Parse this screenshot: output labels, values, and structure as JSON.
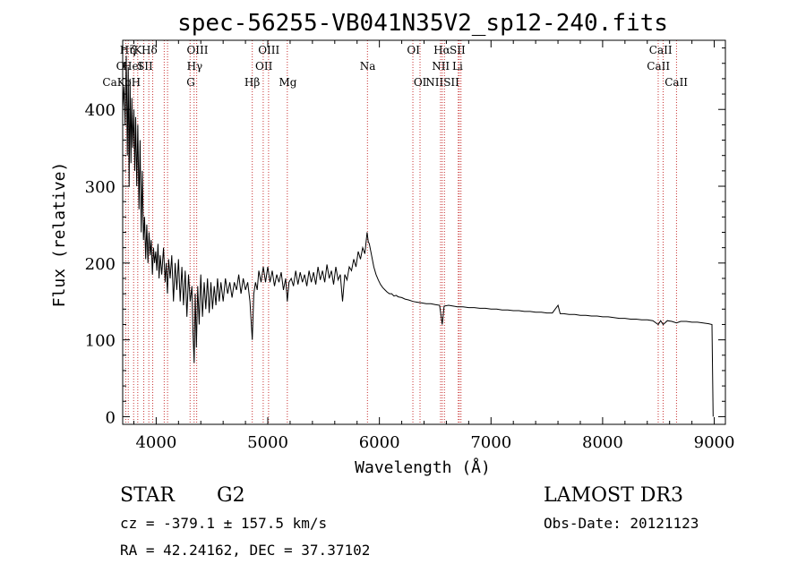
{
  "chart_data": {
    "type": "line",
    "title": "spec-56255-VB041N35V2_sp12-240.fits",
    "xlabel": "Wavelength (Å)",
    "ylabel": "Flux (relative)",
    "xlim": [
      3700,
      9100
    ],
    "ylim": [
      -10,
      490
    ],
    "xticks": [
      4000,
      5000,
      6000,
      7000,
      8000,
      9000
    ],
    "yticks": [
      0,
      100,
      200,
      300,
      400
    ],
    "x_tick_labels": [
      "4000",
      "5000",
      "6000",
      "7000",
      "8000",
      "9000"
    ],
    "y_tick_labels": [
      "0",
      "100",
      "200",
      "300",
      "400"
    ],
    "grid": false,
    "line_color": "#000000",
    "marker_line_color": "#c83232",
    "series": [
      {
        "points": [
          [
            3700,
            400
          ],
          [
            3712,
            430
          ],
          [
            3722,
            380
          ],
          [
            3732,
            470
          ],
          [
            3742,
            340
          ],
          [
            3750,
            455
          ],
          [
            3758,
            300
          ],
          [
            3766,
            440
          ],
          [
            3774,
            330
          ],
          [
            3782,
            415
          ],
          [
            3790,
            350
          ],
          [
            3800,
            400
          ],
          [
            3808,
            320
          ],
          [
            3816,
            390
          ],
          [
            3826,
            300
          ],
          [
            3836,
            380
          ],
          [
            3846,
            270
          ],
          [
            3856,
            360
          ],
          [
            3866,
            240
          ],
          [
            3876,
            320
          ],
          [
            3886,
            230
          ],
          [
            3896,
            260
          ],
          [
            3906,
            205
          ],
          [
            3916,
            250
          ],
          [
            3926,
            200
          ],
          [
            3936,
            240
          ],
          [
            3946,
            210
          ],
          [
            3956,
            230
          ],
          [
            3966,
            185
          ],
          [
            3976,
            220
          ],
          [
            3986,
            200
          ],
          [
            3996,
            215
          ],
          [
            4006,
            190
          ],
          [
            4016,
            225
          ],
          [
            4026,
            180
          ],
          [
            4036,
            210
          ],
          [
            4050,
            185
          ],
          [
            4066,
            220
          ],
          [
            4080,
            175
          ],
          [
            4090,
            200
          ],
          [
            4101,
            160
          ],
          [
            4112,
            205
          ],
          [
            4125,
            180
          ],
          [
            4140,
            210
          ],
          [
            4155,
            150
          ],
          [
            4170,
            200
          ],
          [
            4185,
            165
          ],
          [
            4200,
            205
          ],
          [
            4215,
            150
          ],
          [
            4230,
            195
          ],
          [
            4245,
            145
          ],
          [
            4260,
            190
          ],
          [
            4275,
            130
          ],
          [
            4290,
            185
          ],
          [
            4305,
            150
          ],
          [
            4320,
            170
          ],
          [
            4330,
            110
          ],
          [
            4340,
            70
          ],
          [
            4350,
            160
          ],
          [
            4360,
            90
          ],
          [
            4372,
            170
          ],
          [
            4385,
            120
          ],
          [
            4400,
            185
          ],
          [
            4415,
            130
          ],
          [
            4430,
            175
          ],
          [
            4445,
            140
          ],
          [
            4460,
            180
          ],
          [
            4475,
            135
          ],
          [
            4490,
            175
          ],
          [
            4505,
            140
          ],
          [
            4520,
            170
          ],
          [
            4535,
            145
          ],
          [
            4550,
            180
          ],
          [
            4565,
            150
          ],
          [
            4580,
            175
          ],
          [
            4600,
            150
          ],
          [
            4620,
            180
          ],
          [
            4640,
            160
          ],
          [
            4660,
            175
          ],
          [
            4680,
            155
          ],
          [
            4700,
            175
          ],
          [
            4720,
            165
          ],
          [
            4740,
            185
          ],
          [
            4760,
            160
          ],
          [
            4780,
            180
          ],
          [
            4800,
            165
          ],
          [
            4820,
            175
          ],
          [
            4840,
            150
          ],
          [
            4861,
            100
          ],
          [
            4875,
            160
          ],
          [
            4890,
            175
          ],
          [
            4905,
            165
          ],
          [
            4920,
            190
          ],
          [
            4940,
            175
          ],
          [
            4960,
            195
          ],
          [
            4980,
            175
          ],
          [
            5000,
            195
          ],
          [
            5020,
            175
          ],
          [
            5040,
            190
          ],
          [
            5060,
            170
          ],
          [
            5080,
            185
          ],
          [
            5100,
            175
          ],
          [
            5120,
            188
          ],
          [
            5140,
            165
          ],
          [
            5160,
            180
          ],
          [
            5175,
            150
          ],
          [
            5190,
            175
          ],
          [
            5210,
            180
          ],
          [
            5230,
            170
          ],
          [
            5250,
            190
          ],
          [
            5270,
            172
          ],
          [
            5290,
            188
          ],
          [
            5310,
            175
          ],
          [
            5330,
            185
          ],
          [
            5350,
            170
          ],
          [
            5370,
            190
          ],
          [
            5390,
            175
          ],
          [
            5410,
            188
          ],
          [
            5430,
            172
          ],
          [
            5450,
            195
          ],
          [
            5470,
            178
          ],
          [
            5490,
            190
          ],
          [
            5510,
            175
          ],
          [
            5530,
            198
          ],
          [
            5550,
            180
          ],
          [
            5570,
            190
          ],
          [
            5590,
            172
          ],
          [
            5610,
            195
          ],
          [
            5630,
            178
          ],
          [
            5650,
            185
          ],
          [
            5670,
            150
          ],
          [
            5690,
            185
          ],
          [
            5710,
            178
          ],
          [
            5730,
            195
          ],
          [
            5750,
            190
          ],
          [
            5770,
            205
          ],
          [
            5790,
            195
          ],
          [
            5810,
            215
          ],
          [
            5830,
            205
          ],
          [
            5850,
            220
          ],
          [
            5870,
            212
          ],
          [
            5890,
            240
          ],
          [
            5900,
            228
          ],
          [
            5910,
            225
          ],
          [
            5930,
            210
          ],
          [
            5950,
            195
          ],
          [
            5970,
            185
          ],
          [
            5990,
            178
          ],
          [
            6010,
            172
          ],
          [
            6030,
            168
          ],
          [
            6050,
            165
          ],
          [
            6070,
            162
          ],
          [
            6090,
            160
          ],
          [
            6110,
            160
          ],
          [
            6130,
            157
          ],
          [
            6150,
            158
          ],
          [
            6170,
            156
          ],
          [
            6200,
            155
          ],
          [
            6230,
            153
          ],
          [
            6260,
            152
          ],
          [
            6300,
            150
          ],
          [
            6340,
            149
          ],
          [
            6380,
            148
          ],
          [
            6420,
            147
          ],
          [
            6460,
            147
          ],
          [
            6500,
            146
          ],
          [
            6540,
            145
          ],
          [
            6563,
            120
          ],
          [
            6580,
            144
          ],
          [
            6620,
            145
          ],
          [
            6660,
            144
          ],
          [
            6700,
            143
          ],
          [
            6750,
            143
          ],
          [
            6800,
            142
          ],
          [
            6850,
            142
          ],
          [
            6900,
            141
          ],
          [
            6950,
            141
          ],
          [
            7000,
            140
          ],
          [
            7050,
            140
          ],
          [
            7100,
            139
          ],
          [
            7150,
            139
          ],
          [
            7200,
            138
          ],
          [
            7250,
            138
          ],
          [
            7300,
            137
          ],
          [
            7350,
            137
          ],
          [
            7400,
            136
          ],
          [
            7450,
            136
          ],
          [
            7500,
            135
          ],
          [
            7550,
            135
          ],
          [
            7600,
            145
          ],
          [
            7620,
            134
          ],
          [
            7650,
            134
          ],
          [
            7700,
            133
          ],
          [
            7750,
            133
          ],
          [
            7800,
            132
          ],
          [
            7850,
            132
          ],
          [
            7900,
            131
          ],
          [
            7950,
            131
          ],
          [
            8000,
            130
          ],
          [
            8050,
            130
          ],
          [
            8100,
            129
          ],
          [
            8150,
            128
          ],
          [
            8200,
            128
          ],
          [
            8250,
            127
          ],
          [
            8300,
            127
          ],
          [
            8350,
            126
          ],
          [
            8400,
            126
          ],
          [
            8450,
            125
          ],
          [
            8498,
            120
          ],
          [
            8520,
            125
          ],
          [
            8542,
            120
          ],
          [
            8580,
            125
          ],
          [
            8620,
            124
          ],
          [
            8662,
            122
          ],
          [
            8700,
            124
          ],
          [
            8750,
            124
          ],
          [
            8800,
            123
          ],
          [
            8850,
            123
          ],
          [
            8900,
            122
          ],
          [
            8950,
            121
          ],
          [
            8980,
            120
          ],
          [
            8990,
            0
          ]
        ]
      }
    ],
    "line_markers": [
      {
        "x": 3727,
        "labels": [
          "O II"
        ]
      },
      {
        "x": 3750,
        "labels": [
          "Hη"
        ]
      },
      {
        "x": 3798,
        "labels": [
          "Hζ"
        ]
      },
      {
        "x": 3835,
        "labels": [
          "Hη"
        ]
      },
      {
        "x": 3889,
        "labels": [
          "HeI"
        ]
      },
      {
        "x": 3934,
        "labels": [
          "K"
        ]
      },
      {
        "x": 3969,
        "labels": [
          "H"
        ]
      },
      {
        "x": 4072,
        "labels": [
          "SII"
        ]
      },
      {
        "x": 4102,
        "labels": [
          "Hδ"
        ]
      },
      {
        "x": 4304,
        "labels": [
          "G"
        ]
      },
      {
        "x": 4340,
        "labels": [
          "Hγ"
        ]
      },
      {
        "x": 4363,
        "labels": [
          "OIII"
        ]
      },
      {
        "x": 4861,
        "labels": [
          "Hβ"
        ]
      },
      {
        "x": 4959,
        "labels": [
          "OIII"
        ]
      },
      {
        "x": 5007,
        "labels": [
          "OIII"
        ]
      },
      {
        "x": 5175,
        "labels": [
          "Mg"
        ]
      },
      {
        "x": 5893,
        "labels": [
          "Na"
        ]
      },
      {
        "x": 6300,
        "labels": [
          "OI"
        ]
      },
      {
        "x": 6364,
        "labels": [
          "OI"
        ]
      },
      {
        "x": 6548,
        "labels": [
          "NII"
        ]
      },
      {
        "x": 6563,
        "labels": [
          "Hα"
        ]
      },
      {
        "x": 6583,
        "labels": [
          "NII"
        ]
      },
      {
        "x": 6707,
        "labels": [
          "Li"
        ]
      },
      {
        "x": 6716,
        "labels": [
          "SII"
        ]
      },
      {
        "x": 6731,
        "labels": [
          "SII"
        ]
      },
      {
        "x": 8498,
        "labels": [
          "CaII"
        ]
      },
      {
        "x": 8542,
        "labels": [
          "CaII"
        ]
      },
      {
        "x": 8662,
        "labels": [
          "CaII"
        ]
      }
    ],
    "marker_label_texts": {
      "row1": [
        {
          "x": 3745,
          "text": "Hη"
        },
        {
          "x": 3790,
          "text": "ζ"
        },
        {
          "x": 3836,
          "text": "K"
        },
        {
          "x": 3940,
          "text": "Hδ"
        },
        {
          "x": 4370,
          "text": "OIII"
        },
        {
          "x": 5010,
          "text": "OIII"
        },
        {
          "x": 6305,
          "text": "OI"
        },
        {
          "x": 6560,
          "text": "Hα"
        },
        {
          "x": 6700,
          "text": "SII"
        },
        {
          "x": 8520,
          "text": "CaII"
        }
      ],
      "row2": [
        {
          "x": 3680,
          "text": "O"
        },
        {
          "x": 3790,
          "text": "HeI"
        },
        {
          "x": 3900,
          "text": "SII"
        },
        {
          "x": 4345,
          "text": "Hγ"
        },
        {
          "x": 4965,
          "text": "OII"
        },
        {
          "x": 5895,
          "text": "Na"
        },
        {
          "x": 6550,
          "text": "NII"
        },
        {
          "x": 6700,
          "text": "Li"
        },
        {
          "x": 8500,
          "text": "CaII"
        }
      ],
      "row3": [
        {
          "x": 3690,
          "text": "CaKoH"
        },
        {
          "x": 4310,
          "text": "G"
        },
        {
          "x": 4860,
          "text": "Hβ"
        },
        {
          "x": 5180,
          "text": "Mg"
        },
        {
          "x": 6365,
          "text": "OI"
        },
        {
          "x": 6565,
          "text": "NIISII"
        },
        {
          "x": 8660,
          "text": "CaII"
        }
      ]
    }
  },
  "footer": {
    "star_type": "STAR",
    "subclass": "G2",
    "survey": "LAMOST DR3",
    "cz": "cz = -379.1 ± 157.5 km/s",
    "obs_date": "Obs-Date: 20121123",
    "coords": "RA =  42.24162, DEC =  37.37102"
  }
}
